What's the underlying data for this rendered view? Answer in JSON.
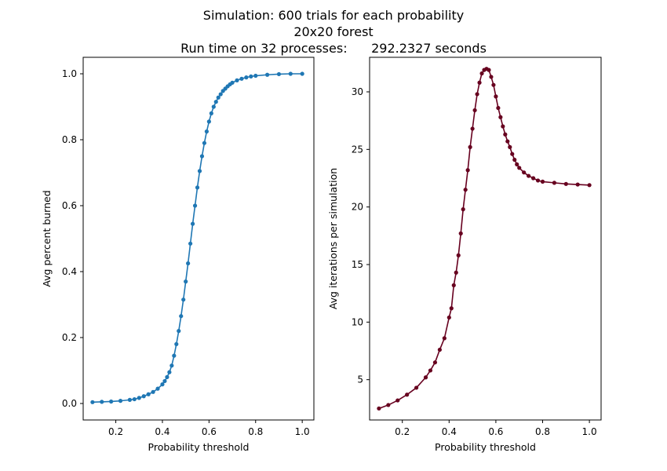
{
  "suptitle": {
    "line1": "Simulation: 600 trials for each probability",
    "line2": "20x20 forest",
    "line3": "Run time on 32 processes:      292.2327 seconds"
  },
  "colors": {
    "left_series": "#1f77b4",
    "right_series": "#67001f"
  },
  "chart_data": [
    {
      "type": "line",
      "xlabel": "Probability threshold",
      "ylabel": "Avg percent burned",
      "xlim": [
        0.06,
        1.05
      ],
      "ylim": [
        -0.05,
        1.05
      ],
      "xticks": [
        0.2,
        0.4,
        0.6,
        0.8,
        1.0
      ],
      "xtick_labels": [
        "0.2",
        "0.4",
        "0.6",
        "0.8",
        "1.0"
      ],
      "yticks": [
        0.0,
        0.2,
        0.4,
        0.6,
        0.8,
        1.0
      ],
      "ytick_labels": [
        "0.0",
        "0.2",
        "0.4",
        "0.6",
        "0.8",
        "1.0"
      ],
      "grid": false,
      "marker": "dot",
      "series": [
        {
          "x": [
            0.1,
            0.14,
            0.18,
            0.22,
            0.26,
            0.28,
            0.3,
            0.32,
            0.34,
            0.36,
            0.38,
            0.4,
            0.41,
            0.42,
            0.43,
            0.44,
            0.45,
            0.46,
            0.47,
            0.48,
            0.49,
            0.5,
            0.51,
            0.52,
            0.53,
            0.54,
            0.55,
            0.56,
            0.57,
            0.58,
            0.59,
            0.6,
            0.61,
            0.62,
            0.63,
            0.64,
            0.65,
            0.66,
            0.67,
            0.68,
            0.69,
            0.7,
            0.72,
            0.74,
            0.76,
            0.78,
            0.8,
            0.85,
            0.9,
            0.95,
            1.0
          ],
          "y": [
            0.004,
            0.005,
            0.006,
            0.008,
            0.011,
            0.013,
            0.017,
            0.022,
            0.028,
            0.035,
            0.045,
            0.058,
            0.068,
            0.08,
            0.095,
            0.115,
            0.145,
            0.18,
            0.22,
            0.265,
            0.315,
            0.37,
            0.425,
            0.485,
            0.545,
            0.6,
            0.655,
            0.705,
            0.75,
            0.79,
            0.825,
            0.855,
            0.88,
            0.9,
            0.915,
            0.928,
            0.938,
            0.948,
            0.955,
            0.962,
            0.968,
            0.973,
            0.98,
            0.985,
            0.989,
            0.992,
            0.994,
            0.997,
            0.999,
            1.0,
            1.0
          ]
        }
      ]
    },
    {
      "type": "line",
      "xlabel": "Probability threshold",
      "ylabel": "Avg iterations per simulation",
      "xlim": [
        0.06,
        1.05
      ],
      "ylim": [
        1.5,
        33.0
      ],
      "xticks": [
        0.2,
        0.4,
        0.6,
        0.8,
        1.0
      ],
      "xtick_labels": [
        "0.2",
        "0.4",
        "0.6",
        "0.8",
        "1.0"
      ],
      "yticks": [
        5,
        10,
        15,
        20,
        25,
        30
      ],
      "ytick_labels": [
        "5",
        "10",
        "15",
        "20",
        "25",
        "30"
      ],
      "grid": false,
      "marker": "dot",
      "series": [
        {
          "x": [
            0.1,
            0.14,
            0.18,
            0.22,
            0.26,
            0.3,
            0.32,
            0.34,
            0.36,
            0.38,
            0.4,
            0.41,
            0.42,
            0.43,
            0.44,
            0.45,
            0.46,
            0.47,
            0.48,
            0.49,
            0.5,
            0.51,
            0.52,
            0.53,
            0.54,
            0.55,
            0.56,
            0.57,
            0.58,
            0.59,
            0.6,
            0.61,
            0.62,
            0.63,
            0.64,
            0.65,
            0.66,
            0.67,
            0.68,
            0.69,
            0.7,
            0.72,
            0.74,
            0.76,
            0.78,
            0.8,
            0.85,
            0.9,
            0.95,
            1.0
          ],
          "y": [
            2.5,
            2.8,
            3.2,
            3.7,
            4.3,
            5.2,
            5.8,
            6.5,
            7.6,
            8.6,
            10.4,
            11.2,
            13.2,
            14.3,
            15.8,
            17.7,
            19.8,
            21.5,
            23.2,
            25.2,
            26.8,
            28.4,
            29.8,
            30.8,
            31.6,
            31.9,
            32.0,
            31.9,
            31.3,
            30.6,
            29.6,
            28.6,
            27.8,
            27.0,
            26.3,
            25.7,
            25.2,
            24.6,
            24.1,
            23.7,
            23.4,
            23.0,
            22.7,
            22.5,
            22.3,
            22.2,
            22.1,
            22.0,
            21.95,
            21.9
          ]
        }
      ]
    }
  ]
}
